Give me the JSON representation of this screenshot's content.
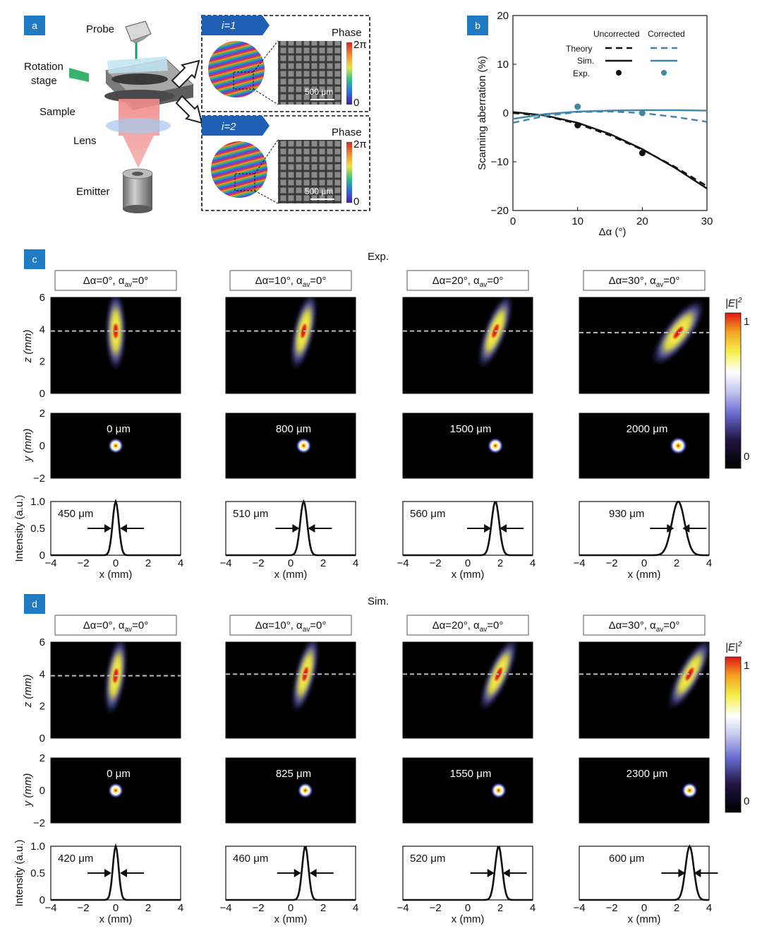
{
  "panel_a": {
    "label": "a",
    "probe": "Probe",
    "rotation_stage_1": "Rotation",
    "rotation_stage_2": "stage",
    "sample": "Sample",
    "lens": "Lens",
    "emitter": "Emitter",
    "insets": [
      {
        "tag": "i=1",
        "phase": "Phase",
        "two_pi": "2π",
        "zero": "0",
        "scalebar": "500 μm"
      },
      {
        "tag": "i=2",
        "phase": "Phase",
        "two_pi": "2π",
        "zero": "0",
        "scalebar": "500 μm"
      }
    ]
  },
  "panel_b": {
    "label": "b",
    "legend": {
      "uncorrected": "Uncorrected",
      "corrected": "Corrected",
      "theory": "Theory",
      "sim": "Sim.",
      "exp": "Exp."
    },
    "colors": {
      "uncorrected": "#111111",
      "corrected": "#3f86a8"
    },
    "chart_data": {
      "type": "line",
      "xlabel": "Δα (°)",
      "ylabel": "Scanning aberration (%)",
      "xlim": [
        0,
        30
      ],
      "ylim": [
        -20,
        20
      ],
      "xticks": [
        "0",
        "10",
        "20",
        "30"
      ],
      "yticks": [
        "20",
        "10",
        "0",
        "−10",
        "−20"
      ],
      "series": [
        {
          "name": "Theory",
          "group": "Uncorrected",
          "style": "dashed",
          "x": [
            0,
            5,
            10,
            15,
            20,
            25,
            30
          ],
          "y": [
            0,
            -0.6,
            -2.2,
            -4.6,
            -7.5,
            -11,
            -15
          ]
        },
        {
          "name": "Sim.",
          "group": "Uncorrected",
          "style": "solid",
          "x": [
            0,
            5,
            10,
            15,
            20,
            25,
            30
          ],
          "y": [
            0.2,
            -0.5,
            -2.0,
            -4.3,
            -7.4,
            -11.2,
            -15.5
          ]
        },
        {
          "name": "Exp.",
          "group": "Uncorrected",
          "style": "points",
          "x": [
            10,
            20
          ],
          "y": [
            -2.5,
            -8.2
          ]
        },
        {
          "name": "Theory",
          "group": "Corrected",
          "style": "dashed",
          "x": [
            0,
            5,
            10,
            15,
            20,
            25,
            30
          ],
          "y": [
            -2.0,
            -0.6,
            0.2,
            0.3,
            0,
            -0.8,
            -1.8
          ]
        },
        {
          "name": "Sim.",
          "group": "Corrected",
          "style": "solid",
          "x": [
            0,
            5,
            10,
            15,
            20,
            25,
            30
          ],
          "y": [
            -1.2,
            -0.2,
            0.3,
            0.5,
            0.6,
            0.6,
            0.5
          ]
        },
        {
          "name": "Exp.",
          "group": "Corrected",
          "style": "points",
          "x": [
            10,
            20
          ],
          "y": [
            1.3,
            0
          ]
        }
      ]
    }
  },
  "colorbar": {
    "symbol": "|E|",
    "sup": "2",
    "max": "1",
    "min": "0"
  },
  "panels": [
    {
      "label": "c",
      "title": "Exp.",
      "columns": [
        {
          "angle": "Δα=0°, α",
          "sub": "av",
          "rest": "=0°",
          "depth": "0 μm",
          "fwhm": "450 μm",
          "center": 0,
          "tilt": 0,
          "width": 0.45,
          "dashed_z": 3.9
        },
        {
          "angle": "Δα=10°, α",
          "sub": "av",
          "rest": "=0°",
          "depth": "800 μm",
          "fwhm": "510 μm",
          "center": 0.8,
          "tilt": 0.22,
          "width": 0.51,
          "dashed_z": 3.9
        },
        {
          "angle": "Δα=20°, α",
          "sub": "av",
          "rest": "=0°",
          "depth": "1500 μm",
          "fwhm": "560 μm",
          "center": 1.7,
          "tilt": 0.38,
          "width": 0.56,
          "dashed_z": 3.9
        },
        {
          "angle": "Δα=30°, α",
          "sub": "av",
          "rest": "=0°",
          "depth": "2000 μm",
          "fwhm": "930 μm",
          "center": 2.1,
          "tilt": 0.75,
          "width": 0.93,
          "dashed_z": 3.8
        }
      ]
    },
    {
      "label": "d",
      "title": "Sim.",
      "columns": [
        {
          "angle": "Δα=0°, α",
          "sub": "av",
          "rest": "=0°",
          "depth": "0 μm",
          "fwhm": "420 μm",
          "center": 0,
          "tilt": 0.15,
          "width": 0.42,
          "dashed_z": 3.9
        },
        {
          "angle": "Δα=10°, α",
          "sub": "av",
          "rest": "=0°",
          "depth": "825 μm",
          "fwhm": "460 μm",
          "center": 0.9,
          "tilt": 0.25,
          "width": 0.46,
          "dashed_z": 4.0
        },
        {
          "angle": "Δα=20°, α",
          "sub": "av",
          "rest": "=0°",
          "depth": "1550 μm",
          "fwhm": "520 μm",
          "center": 1.9,
          "tilt": 0.45,
          "width": 0.52,
          "dashed_z": 4.0
        },
        {
          "angle": "Δα=30°, α",
          "sub": "av",
          "rest": "=0°",
          "depth": "2300 μm",
          "fwhm": "600 μm",
          "center": 2.8,
          "tilt": 0.55,
          "width": 0.6,
          "dashed_z": 4.0
        }
      ]
    }
  ],
  "axes": {
    "z_label": "z (mm)",
    "y_label": "y (mm)",
    "x_label": "x (mm)",
    "intensity_label": "Intensity (a.u.)",
    "z_ticks": [
      "6",
      "4",
      "2",
      "0"
    ],
    "y_ticks": [
      "2",
      "0",
      "−2"
    ],
    "i_ticks": [
      "1.0",
      "0.5",
      "0"
    ],
    "x_ticks": [
      "−4",
      "−2",
      "0",
      "2",
      "4"
    ]
  }
}
